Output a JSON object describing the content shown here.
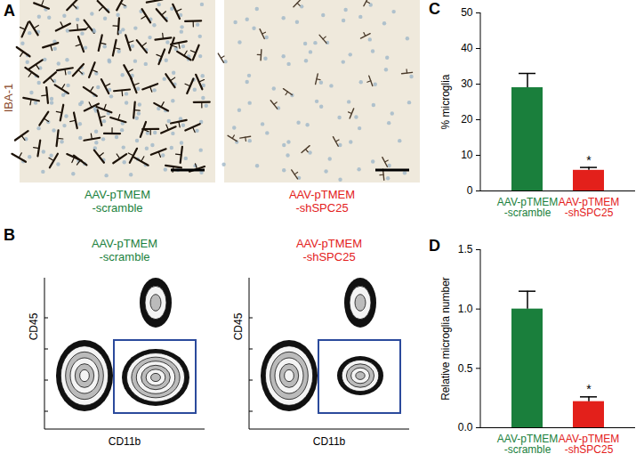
{
  "chart_data": [
    {
      "type": "bar",
      "title": "C",
      "y_label": "% microglia",
      "categories": [
        "AAV-pTMEM\n-scramble",
        "AAV-pTMEM\n-shSPC25"
      ],
      "values": [
        29,
        5.8
      ],
      "errors": [
        4,
        0.8
      ],
      "colors": [
        "#1a7f3c",
        "#e3201b"
      ],
      "ylim": [
        0,
        50
      ],
      "yticks": [
        0,
        10,
        20,
        30,
        40,
        50
      ],
      "annotations": [
        {
          "category": 1,
          "text": "*"
        }
      ]
    },
    {
      "type": "bar",
      "title": "D",
      "y_label": "Relative microglia number",
      "categories": [
        "AAV-pTMEM\n-scramble",
        "AAV-pTMEM\n-shSPC25"
      ],
      "values": [
        1.0,
        0.22
      ],
      "errors": [
        0.15,
        0.04
      ],
      "colors": [
        "#1a7f3c",
        "#e3201b"
      ],
      "ylim": [
        0,
        1.5
      ],
      "yticks": [
        {
          "value": 0,
          "label": "0.0"
        },
        {
          "value": 0.5,
          "label": "0.5"
        },
        {
          "value": 1,
          "label": "1.0"
        },
        {
          "value": 1.5,
          "label": "1.5"
        }
      ],
      "annotations": [
        {
          "category": 1,
          "text": "*"
        }
      ]
    }
  ],
  "panel_a": {
    "label": "A",
    "stain": "IBA-1",
    "stain_color": "#8b4a2b",
    "images": [
      {
        "label": "AAV-pTMEM\n-scramble",
        "color": "#1a7f3c"
      },
      {
        "label": "AAV-pTMEM\n-shSPC25",
        "color": "#e3201b"
      }
    ]
  },
  "panel_b": {
    "label": "B",
    "y_label": "CD45",
    "x_label": "CD11b",
    "plots": [
      {
        "label": "AAV-pTMEM\n-scramble",
        "color": "#1a7f3c"
      },
      {
        "label": "AAV-pTMEM\n-shSPC25",
        "color": "#e3201b"
      }
    ]
  }
}
